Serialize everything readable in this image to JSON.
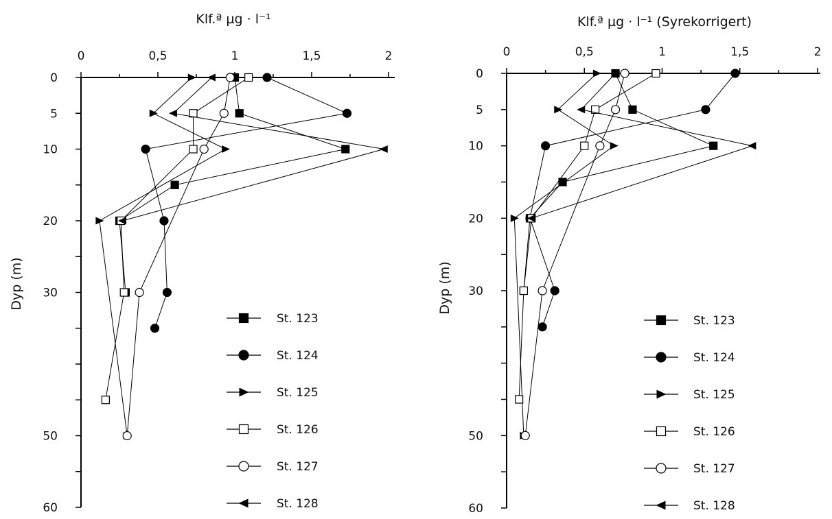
{
  "chart_data": [
    {
      "type": "line",
      "orientation": "depth-profile",
      "title": "Klf.ª µg · l⁻¹",
      "ylabel": "Dyp (m)",
      "xlim": [
        0,
        2
      ],
      "ylim": [
        0,
        60
      ],
      "x_ticks": [
        0,
        0.5,
        1,
        1.5,
        2
      ],
      "x_tick_labels": [
        "0",
        "0,5",
        "1",
        "1,5",
        "2"
      ],
      "y_ticks": [
        0,
        5,
        10,
        20,
        30,
        50,
        60
      ],
      "y_tick_labels": [
        "0",
        "5",
        "10",
        "20",
        "30",
        "50",
        "60"
      ],
      "x_axis_position": "top",
      "legend_position": "bottom-right",
      "series": [
        {
          "name": "St. 123",
          "marker": "square-filled",
          "points": [
            [
              1.0,
              0
            ],
            [
              1.03,
              5
            ],
            [
              1.72,
              10
            ],
            [
              0.61,
              15
            ],
            [
              0.25,
              20
            ],
            [
              0.29,
              30
            ]
          ]
        },
        {
          "name": "St. 124",
          "marker": "circle-filled",
          "points": [
            [
              1.21,
              0
            ],
            [
              1.73,
              5
            ],
            [
              0.42,
              10
            ],
            [
              0.54,
              20
            ],
            [
              0.56,
              30
            ],
            [
              0.48,
              35
            ]
          ]
        },
        {
          "name": "St. 125",
          "marker": "triangle-right-filled",
          "points": [
            [
              0.72,
              0
            ],
            [
              0.47,
              5
            ],
            [
              0.94,
              10
            ],
            [
              0.12,
              20
            ],
            [
              0.3,
              50
            ]
          ]
        },
        {
          "name": "St. 126",
          "marker": "square-open",
          "points": [
            [
              1.09,
              0
            ],
            [
              0.73,
              5
            ],
            [
              0.73,
              10
            ],
            [
              0.26,
              20
            ],
            [
              0.28,
              30
            ],
            [
              0.16,
              45
            ]
          ]
        },
        {
          "name": "St. 127",
          "marker": "circle-open",
          "points": [
            [
              0.97,
              0
            ],
            [
              0.93,
              5
            ],
            [
              0.8,
              10
            ],
            [
              0.38,
              30
            ],
            [
              0.3,
              50
            ]
          ]
        },
        {
          "name": "St. 128",
          "marker": "triangle-left-filled",
          "points": [
            [
              0.85,
              0
            ],
            [
              0.6,
              5
            ],
            [
              1.97,
              10
            ],
            [
              0.27,
              20
            ]
          ]
        }
      ]
    },
    {
      "type": "line",
      "orientation": "depth-profile",
      "title": "Klf.ª µg · l⁻¹ (Syrekorrigert)",
      "ylabel": "Dyp (m)",
      "xlim": [
        0,
        2
      ],
      "ylim": [
        0,
        60
      ],
      "x_ticks": [
        0,
        0.5,
        1,
        1.5,
        2
      ],
      "x_tick_labels": [
        "0",
        "0,5",
        "1",
        "1,5",
        "2"
      ],
      "y_ticks": [
        0,
        5,
        10,
        20,
        30,
        50,
        60
      ],
      "y_tick_labels": [
        "0",
        "5",
        "10",
        "20",
        "30",
        "50",
        "60"
      ],
      "x_axis_position": "top",
      "legend_position": "bottom-right",
      "series": [
        {
          "name": "St. 123",
          "marker": "square-filled",
          "points": [
            [
              0.7,
              0
            ],
            [
              0.81,
              5
            ],
            [
              1.33,
              10
            ],
            [
              0.36,
              15
            ],
            [
              0.15,
              20
            ],
            [
              0.11,
              30
            ]
          ]
        },
        {
          "name": "St. 124",
          "marker": "circle-filled",
          "points": [
            [
              1.47,
              0
            ],
            [
              1.28,
              5
            ],
            [
              0.25,
              10
            ],
            [
              0.15,
              20
            ],
            [
              0.31,
              30
            ],
            [
              0.23,
              35
            ]
          ]
        },
        {
          "name": "St. 125",
          "marker": "triangle-right-filled",
          "points": [
            [
              0.58,
              0
            ],
            [
              0.33,
              5
            ],
            [
              0.69,
              10
            ],
            [
              0.05,
              20
            ],
            [
              0.11,
              50
            ]
          ]
        },
        {
          "name": "St. 126",
          "marker": "square-open",
          "points": [
            [
              0.96,
              0
            ],
            [
              0.57,
              5
            ],
            [
              0.5,
              10
            ],
            [
              0.16,
              20
            ],
            [
              0.11,
              30
            ],
            [
              0.08,
              45
            ]
          ]
        },
        {
          "name": "St. 127",
          "marker": "circle-open",
          "points": [
            [
              0.76,
              0
            ],
            [
              0.7,
              5
            ],
            [
              0.6,
              10
            ],
            [
              0.23,
              30
            ],
            [
              0.12,
              50
            ]
          ]
        },
        {
          "name": "St. 128",
          "marker": "triangle-left-filled",
          "points": [
            [
              0.7,
              0
            ],
            [
              0.48,
              5
            ],
            [
              1.58,
              10
            ],
            [
              0.16,
              20
            ]
          ]
        }
      ]
    }
  ]
}
